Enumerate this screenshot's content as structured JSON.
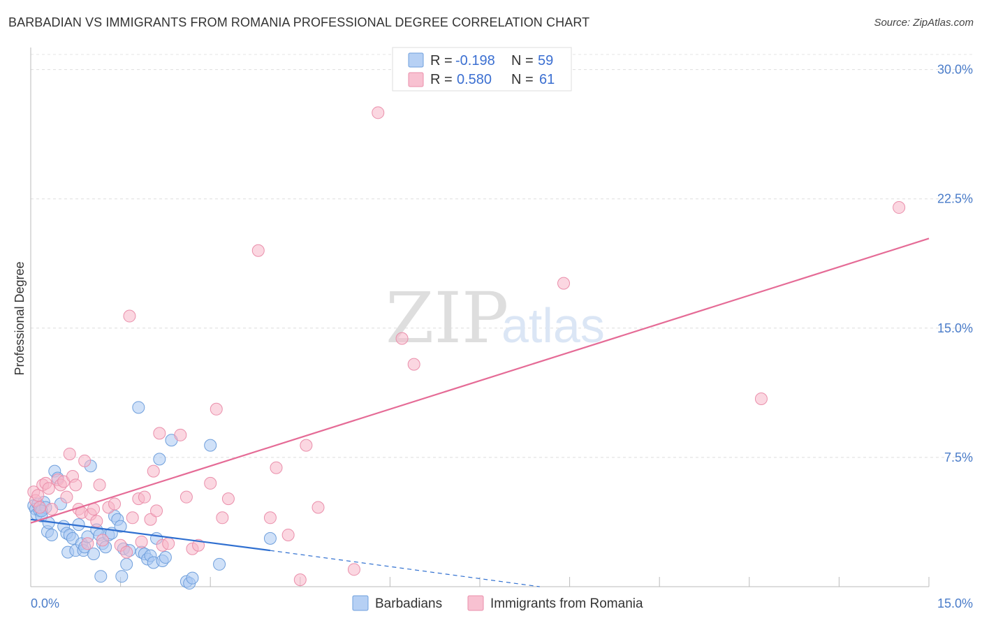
{
  "title": "BARBADIAN VS IMMIGRANTS FROM ROMANIA PROFESSIONAL DEGREE CORRELATION CHART",
  "source": "Source: ZipAtlas.com",
  "watermark": {
    "zip": "ZIP",
    "atlas": "atlas"
  },
  "chart_data": {
    "type": "scatter",
    "xlabel": "",
    "ylabel": "Professional Degree",
    "xlim": [
      0,
      15
    ],
    "ylim": [
      0,
      31.2
    ],
    "x_ticks": [
      {
        "value": 0,
        "label": "0.0%"
      },
      {
        "value": 15,
        "label": "15.0%"
      }
    ],
    "y_ticks": [
      {
        "value": 7.5,
        "label": "7.5%"
      },
      {
        "value": 15,
        "label": "15.0%"
      },
      {
        "value": 22.5,
        "label": "22.5%"
      },
      {
        "value": 30,
        "label": "30.0%"
      }
    ],
    "x_minor_ticks": [
      1.5,
      3.0,
      4.5,
      6.0,
      7.5,
      9.0,
      10.5,
      12.0,
      13.5,
      15.0
    ],
    "grid": true,
    "legend": {
      "position": "top-center",
      "rows": [
        {
          "r_label": "R =",
          "r_value": "-0.198",
          "n_label": "N =",
          "n_value": "59",
          "color": "#a9c8f2"
        },
        {
          "r_label": "R =",
          "r_value": "0.580",
          "n_label": "N =",
          "n_value": "61",
          "color": "#f7b6c9"
        }
      ]
    },
    "series": [
      {
        "name": "Barbadians",
        "color": "#a9c8f2",
        "stroke": "#6f9fdc",
        "trend": {
          "x0": 0.0,
          "y0": 3.9,
          "x1": 4.0,
          "y1": 2.1,
          "dash_x1": 8.5,
          "dash_y1": 0.0,
          "color": "#2f6fd0"
        },
        "points": [
          [
            0.05,
            4.7
          ],
          [
            0.08,
            4.5
          ],
          [
            0.1,
            4.2
          ],
          [
            0.12,
            4.8
          ],
          [
            0.15,
            4.4
          ],
          [
            0.18,
            4.1
          ],
          [
            0.22,
            4.9
          ],
          [
            0.25,
            4.6
          ],
          [
            0.28,
            3.2
          ],
          [
            0.3,
            3.7
          ],
          [
            0.35,
            3.0
          ],
          [
            0.4,
            6.7
          ],
          [
            0.45,
            6.3
          ],
          [
            0.5,
            4.8
          ],
          [
            0.55,
            3.5
          ],
          [
            0.6,
            3.1
          ],
          [
            0.62,
            2.0
          ],
          [
            0.65,
            3.0
          ],
          [
            0.7,
            2.8
          ],
          [
            0.75,
            2.1
          ],
          [
            0.8,
            3.6
          ],
          [
            0.85,
            2.5
          ],
          [
            0.88,
            2.1
          ],
          [
            0.9,
            2.3
          ],
          [
            0.95,
            2.9
          ],
          [
            1.0,
            7.0
          ],
          [
            1.05,
            1.9
          ],
          [
            1.1,
            3.3
          ],
          [
            1.15,
            3.0
          ],
          [
            1.2,
            2.5
          ],
          [
            1.25,
            2.3
          ],
          [
            1.3,
            3.0
          ],
          [
            1.35,
            3.1
          ],
          [
            1.4,
            4.1
          ],
          [
            1.45,
            3.9
          ],
          [
            1.5,
            3.5
          ],
          [
            1.55,
            2.2
          ],
          [
            1.6,
            1.3
          ],
          [
            1.65,
            2.1
          ],
          [
            1.8,
            10.4
          ],
          [
            1.85,
            2.0
          ],
          [
            1.9,
            1.9
          ],
          [
            1.95,
            1.6
          ],
          [
            2.0,
            1.8
          ],
          [
            2.05,
            1.4
          ],
          [
            2.1,
            2.8
          ],
          [
            2.15,
            7.4
          ],
          [
            2.2,
            1.5
          ],
          [
            2.25,
            1.7
          ],
          [
            2.35,
            8.5
          ],
          [
            2.6,
            0.3
          ],
          [
            2.65,
            0.2
          ],
          [
            2.7,
            0.5
          ],
          [
            3.0,
            8.2
          ],
          [
            3.15,
            1.3
          ],
          [
            4.0,
            2.8
          ],
          [
            1.17,
            0.6
          ],
          [
            1.52,
            0.6
          ],
          [
            0.18,
            4.4
          ]
        ]
      },
      {
        "name": "Immigrants from Romania",
        "color": "#f7b6c9",
        "stroke": "#ea8fab",
        "trend": {
          "x0": 0.0,
          "y0": 3.7,
          "x1": 15.0,
          "y1": 20.2,
          "color": "#e56b96"
        },
        "points": [
          [
            0.05,
            5.5
          ],
          [
            0.08,
            5.0
          ],
          [
            0.12,
            5.3
          ],
          [
            0.15,
            4.6
          ],
          [
            0.2,
            5.9
          ],
          [
            0.25,
            6.0
          ],
          [
            0.3,
            5.7
          ],
          [
            0.35,
            4.5
          ],
          [
            0.45,
            6.2
          ],
          [
            0.5,
            5.9
          ],
          [
            0.55,
            6.1
          ],
          [
            0.6,
            5.2
          ],
          [
            0.65,
            7.7
          ],
          [
            0.7,
            6.4
          ],
          [
            0.75,
            5.9
          ],
          [
            0.8,
            4.5
          ],
          [
            0.85,
            4.3
          ],
          [
            0.9,
            7.3
          ],
          [
            0.95,
            2.5
          ],
          [
            1.0,
            4.2
          ],
          [
            1.05,
            4.5
          ],
          [
            1.1,
            3.8
          ],
          [
            1.15,
            5.9
          ],
          [
            1.2,
            2.7
          ],
          [
            1.3,
            4.6
          ],
          [
            1.4,
            4.8
          ],
          [
            1.5,
            2.4
          ],
          [
            1.6,
            2.0
          ],
          [
            1.65,
            15.7
          ],
          [
            1.7,
            4.0
          ],
          [
            1.8,
            5.1
          ],
          [
            1.85,
            2.6
          ],
          [
            1.9,
            5.2
          ],
          [
            2.0,
            3.9
          ],
          [
            2.05,
            6.7
          ],
          [
            2.1,
            4.4
          ],
          [
            2.15,
            8.9
          ],
          [
            2.2,
            2.4
          ],
          [
            2.3,
            2.5
          ],
          [
            2.5,
            8.8
          ],
          [
            2.6,
            5.2
          ],
          [
            2.7,
            2.2
          ],
          [
            2.8,
            2.4
          ],
          [
            3.0,
            6.0
          ],
          [
            3.1,
            10.3
          ],
          [
            3.2,
            4.0
          ],
          [
            3.3,
            5.1
          ],
          [
            3.8,
            19.5
          ],
          [
            4.0,
            4.0
          ],
          [
            4.1,
            6.9
          ],
          [
            4.3,
            3.0
          ],
          [
            4.5,
            0.4
          ],
          [
            4.6,
            8.2
          ],
          [
            4.8,
            4.6
          ],
          [
            5.4,
            1.0
          ],
          [
            5.8,
            27.5
          ],
          [
            6.2,
            14.4
          ],
          [
            6.4,
            12.9
          ],
          [
            8.9,
            17.6
          ],
          [
            12.2,
            10.9
          ],
          [
            14.5,
            22.0
          ]
        ]
      }
    ]
  }
}
